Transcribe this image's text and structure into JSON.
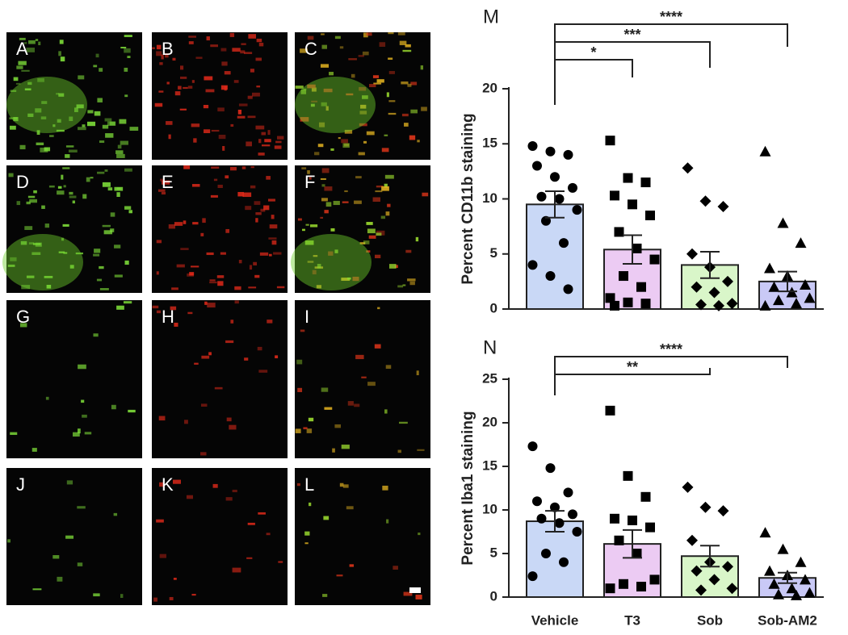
{
  "panels": [
    "A",
    "B",
    "C",
    "D",
    "E",
    "F",
    "G",
    "H",
    "I",
    "J",
    "K",
    "L"
  ],
  "chart_data": [
    {
      "type": "bar",
      "panel_label": "M",
      "ylabel": "Percent CD11b staining",
      "values": [
        9.5,
        5.4,
        4.0,
        2.5
      ],
      "errors": [
        1.2,
        1.3,
        1.2,
        0.9
      ],
      "points": [
        [
          14.8,
          14.3,
          14.0,
          13.0,
          12.0,
          11.0,
          10.2,
          10.0,
          9.0,
          8.0,
          6.0,
          4.0,
          3.0,
          1.8
        ],
        [
          15.3,
          11.9,
          11.5,
          10.3,
          9.5,
          8.5,
          7.0,
          5.5,
          4.5,
          3.0,
          2.0,
          1.0,
          0.6,
          0.5,
          0.3
        ],
        [
          12.8,
          9.8,
          9.3,
          5.0,
          3.8,
          2.5,
          2.0,
          1.5,
          0.5,
          0.4,
          0.3
        ],
        [
          14.3,
          7.8,
          6.0,
          3.7,
          3.0,
          2.2,
          2.0,
          1.5,
          1.0,
          0.8,
          0.5,
          0.3
        ]
      ],
      "colors": [
        "#c9d8f6",
        "#eccbf3",
        "#d9f6c9",
        "#c9c9f6"
      ],
      "markers": [
        "circle",
        "square",
        "diamond",
        "triangle"
      ],
      "significance": [
        null,
        "*",
        "***",
        "****"
      ],
      "ylim": [
        0,
        20
      ],
      "yticks": [
        0,
        5,
        10,
        15,
        20
      ]
    },
    {
      "type": "bar",
      "panel_label": "N",
      "ylabel": "Percent Iba1 staining",
      "categories": [
        "Vehicle",
        "T3",
        "Sob",
        "Sob-AM2"
      ],
      "values": [
        8.7,
        6.1,
        4.7,
        2.2
      ],
      "errors": [
        1.2,
        1.6,
        1.2,
        0.6
      ],
      "points": [
        [
          17.3,
          14.8,
          12.0,
          11.0,
          10.3,
          9.5,
          9.0,
          8.5,
          7.5,
          5.0,
          4.0,
          2.4
        ],
        [
          21.4,
          13.9,
          11.5,
          9.0,
          8.8,
          8.0,
          6.5,
          5.0,
          2.0,
          1.5,
          1.2,
          1.0
        ],
        [
          12.6,
          10.3,
          9.9,
          6.5,
          4.0,
          3.5,
          3.0,
          2.0,
          1.0,
          0.8
        ],
        [
          7.4,
          5.5,
          4.0,
          3.0,
          2.5,
          2.0,
          1.5,
          1.0,
          0.5,
          0.3,
          0.2
        ]
      ],
      "colors": [
        "#c9d8f6",
        "#eccbf3",
        "#d9f6c9",
        "#c9c9f6"
      ],
      "markers": [
        "circle",
        "square",
        "diamond",
        "triangle"
      ],
      "significance": [
        null,
        null,
        "**",
        "****"
      ],
      "ylim": [
        0,
        25
      ],
      "yticks": [
        0,
        5,
        10,
        15,
        20,
        25
      ]
    }
  ]
}
